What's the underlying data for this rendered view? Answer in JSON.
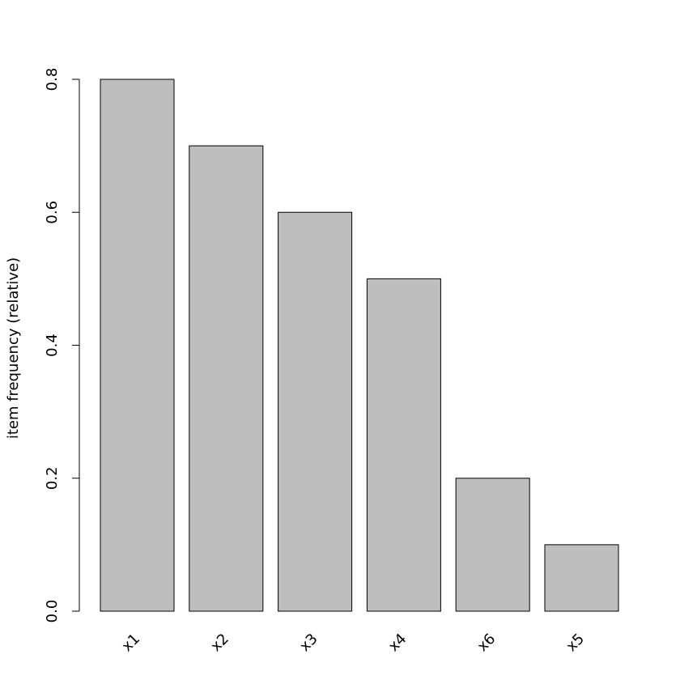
{
  "chart_data": {
    "type": "bar",
    "y_label": "item frequency (relative)",
    "categories": [
      "x1",
      "x2",
      "x3",
      "x4",
      "x6",
      "x5"
    ],
    "values": [
      0.8,
      0.7,
      0.6,
      0.5,
      0.2,
      0.1
    ],
    "color": "#bebebe",
    "ylim": [
      0,
      0.8
    ],
    "yticks": [
      {
        "value": 0,
        "label": "0.0"
      },
      0.2,
      0.4,
      0.6,
      0.8
    ]
  }
}
